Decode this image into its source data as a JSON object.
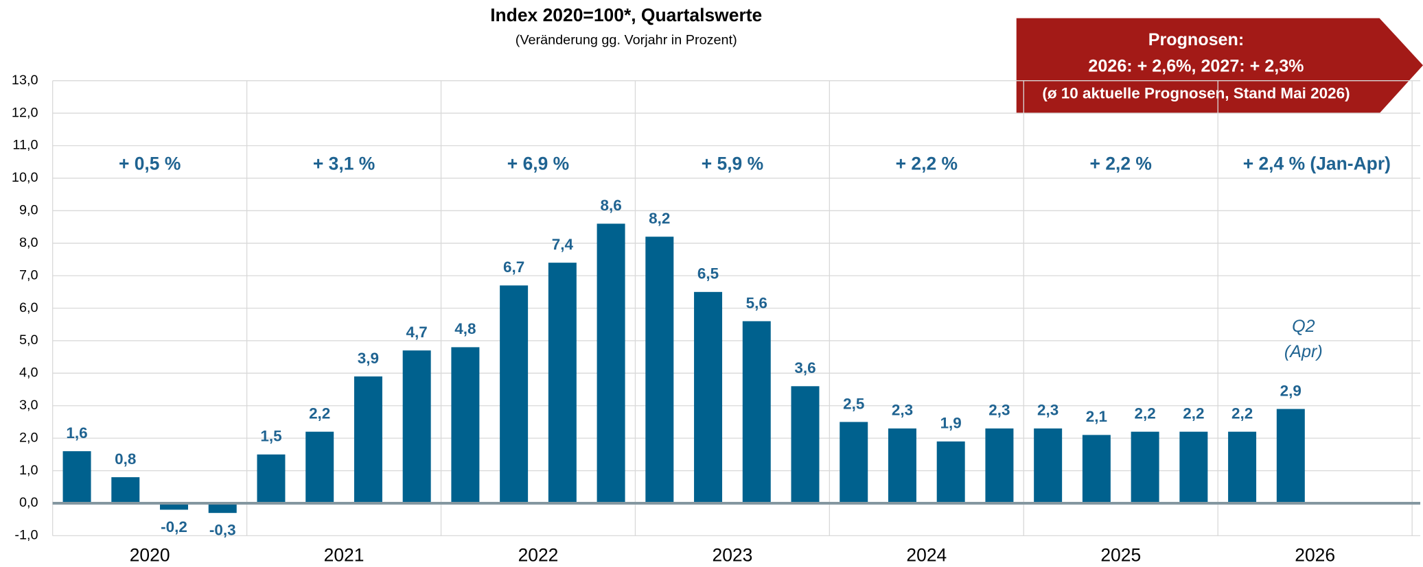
{
  "chart_data": {
    "type": "bar",
    "title": "Index 2020=100*, Quartalswerte",
    "subtitle": "(Veränderung gg. Vorjahr in Prozent)",
    "callout": [
      "Prognosen:",
      "2026: + 2,6%,  2027: + 2,3%",
      "(ø 10 aktuelle Prognosen, Stand Mai 2026)"
    ],
    "categories": [
      null,
      null,
      null,
      null,
      null,
      null,
      null,
      null,
      null,
      null,
      null,
      null,
      null,
      null,
      null,
      null,
      null,
      null,
      null,
      null,
      null,
      null,
      null,
      null,
      null,
      null
    ],
    "values": [
      1.6,
      0.8,
      -0.2,
      -0.3,
      1.5,
      2.2,
      3.9,
      4.7,
      4.8,
      6.7,
      7.4,
      8.6,
      8.2,
      6.5,
      5.6,
      3.6,
      2.5,
      2.3,
      1.9,
      2.3,
      2.3,
      2.1,
      2.2,
      2.2,
      2.2,
      2.9
    ],
    "value_labels": [
      "1,6",
      "0,8",
      "-0,2",
      "-0,3",
      "1,5",
      "2,2",
      "3,9",
      "4,7",
      "4,8",
      "6,7",
      "7,4",
      "8,6",
      "8,2",
      "6,5",
      "5,6",
      "3,6",
      "2,5",
      "2,3",
      "1,9",
      "2,3",
      "2,3",
      "2,1",
      "2,2",
      "2,2",
      "2,2",
      "2,9"
    ],
    "color": "#00618e",
    "years": [
      "2020",
      "2021",
      "2022",
      "2023",
      "2024",
      "2025",
      "2026"
    ],
    "annual_changes": [
      "+ 0,5 %",
      "+ 3,1 %",
      "+ 6,9 %",
      "+ 5,9 %",
      "+ 2,2 %",
      "+ 2,2 %",
      "+ 2,4 % (Jan-Apr)"
    ],
    "last_bar_note": [
      "Q2",
      "(Apr)"
    ],
    "ylim": [
      -1,
      13
    ],
    "yticks": [
      {
        "value": -1,
        "label": "-1,0"
      },
      {
        "value": 0,
        "label": "0,0"
      },
      {
        "value": 1,
        "label": "1,0"
      },
      {
        "value": 2,
        "label": "2,0"
      },
      {
        "value": 3,
        "label": "3,0"
      },
      {
        "value": 4,
        "label": "4,0"
      },
      {
        "value": 5,
        "label": "5,0"
      },
      {
        "value": 6,
        "label": "6,0"
      },
      {
        "value": 7,
        "label": "7,0"
      },
      {
        "value": 8,
        "label": "8,0"
      },
      {
        "value": 9,
        "label": "9,0"
      },
      {
        "value": 10,
        "label": "10,0"
      },
      {
        "value": 11,
        "label": "11,0"
      },
      {
        "value": 12,
        "label": "12,0"
      },
      {
        "value": 13,
        "label": "13,0"
      }
    ],
    "grid": true
  }
}
